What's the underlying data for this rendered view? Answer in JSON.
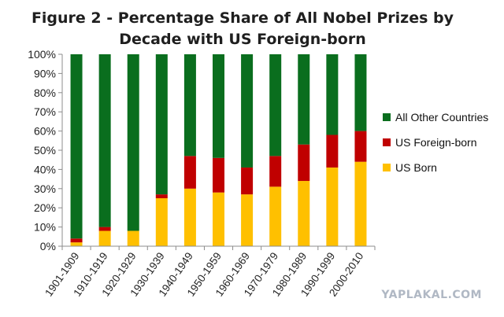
{
  "chart_data": {
    "type": "bar",
    "stacked": true,
    "title": [
      "Figure 2 - Percentage Share of All Nobel Prizes by",
      "Decade with US Foreign-born"
    ],
    "xlabel": "",
    "ylabel": "",
    "ylim": [
      0,
      100
    ],
    "yticks": [
      "0%",
      "10%",
      "20%",
      "30%",
      "40%",
      "50%",
      "60%",
      "70%",
      "80%",
      "90%",
      "100%"
    ],
    "categories": [
      "1901-1909",
      "1910-1919",
      "1920-1929",
      "1930-1939",
      "1940-1949",
      "1950-1959",
      "1960-1969",
      "1970-1979",
      "1980-1989",
      "1990-1999",
      "2000-2010"
    ],
    "series": [
      {
        "name": "US Born",
        "color": "#ffc000",
        "values": [
          2,
          8,
          8,
          25,
          30,
          28,
          27,
          31,
          34,
          41,
          44
        ]
      },
      {
        "name": "US Foreign-born",
        "color": "#c00000",
        "values": [
          2,
          2,
          0,
          2,
          17,
          18,
          14,
          16,
          19,
          17,
          16
        ]
      },
      {
        "name": "All Other Countries",
        "color": "#0a6e1e",
        "values": [
          96,
          90,
          92,
          73,
          53,
          54,
          59,
          53,
          47,
          42,
          40
        ]
      }
    ],
    "legend": {
      "position": "right",
      "order": [
        "All Other Countries",
        "US Foreign-born",
        "US Born"
      ]
    },
    "grid": false
  },
  "watermark": "YAPLAKAL.COM"
}
